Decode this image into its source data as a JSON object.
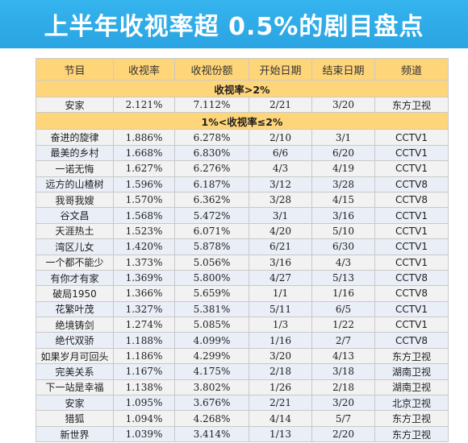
{
  "title": "上半年收视率超 0.5%的剧目盘点",
  "headers": [
    "节目",
    "收视率",
    "收视份额",
    "开始日期",
    "结束日期",
    "频道"
  ],
  "sections": [
    {
      "label": "收视率>2%",
      "rows": [
        [
          "安家",
          "2.121%",
          "7.112%",
          "2/21",
          "3/20",
          "东方卫视"
        ]
      ]
    },
    {
      "label": "1%<收视率≤2%",
      "rows": [
        [
          "奋进的旋律",
          "1.886%",
          "6.278%",
          "2/10",
          "3/1",
          "CCTV1"
        ],
        [
          "最美的乡村",
          "1.668%",
          "6.830%",
          "6/6",
          "6/20",
          "CCTV1"
        ],
        [
          "一诺无悔",
          "1.627%",
          "6.276%",
          "4/3",
          "4/19",
          "CCTV1"
        ],
        [
          "远方的山楂树",
          "1.596%",
          "6.187%",
          "3/12",
          "3/28",
          "CCTV8"
        ],
        [
          "我哥我嫂",
          "1.570%",
          "6.362%",
          "3/28",
          "4/15",
          "CCTV8"
        ],
        [
          "谷文昌",
          "1.568%",
          "5.472%",
          "3/1",
          "3/16",
          "CCTV1"
        ],
        [
          "天涯热土",
          "1.523%",
          "6.071%",
          "4/20",
          "5/10",
          "CCTV1"
        ],
        [
          "湾区儿女",
          "1.420%",
          "5.878%",
          "6/21",
          "6/30",
          "CCTV1"
        ],
        [
          "一个都不能少",
          "1.373%",
          "5.056%",
          "3/16",
          "4/3",
          "CCTV1"
        ],
        [
          "有你才有家",
          "1.369%",
          "5.800%",
          "4/27",
          "5/13",
          "CCTV8"
        ],
        [
          "破局1950",
          "1.366%",
          "5.659%",
          "1/1",
          "1/16",
          "CCTV8"
        ],
        [
          "花繁叶茂",
          "1.327%",
          "5.381%",
          "5/11",
          "6/5",
          "CCTV1"
        ],
        [
          "绝境铸剑",
          "1.274%",
          "5.085%",
          "1/3",
          "1/22",
          "CCTV1"
        ],
        [
          "绝代双骄",
          "1.188%",
          "4.099%",
          "1/16",
          "2/7",
          "CCTV8"
        ],
        [
          "如果岁月可回头",
          "1.186%",
          "4.299%",
          "3/20",
          "4/13",
          "东方卫视"
        ],
        [
          "完美关系",
          "1.167%",
          "4.175%",
          "2/18",
          "3/18",
          "湖南卫视"
        ],
        [
          "下一站是幸福",
          "1.138%",
          "3.802%",
          "1/26",
          "2/18",
          "湖南卫视"
        ],
        [
          "安家",
          "1.095%",
          "3.676%",
          "2/21",
          "3/20",
          "北京卫视"
        ],
        [
          "猎狐",
          "1.094%",
          "4.268%",
          "4/14",
          "5/7",
          "东方卫视"
        ],
        [
          "新世界",
          "1.039%",
          "3.414%",
          "1/13",
          "2/20",
          "东方卫视"
        ]
      ]
    }
  ],
  "colors": {
    "banner": "#2aa4e2",
    "header_bg": "#ffd57a",
    "row_bg": "#f2f2f2",
    "row_alt_bg": "#e9eef7"
  }
}
